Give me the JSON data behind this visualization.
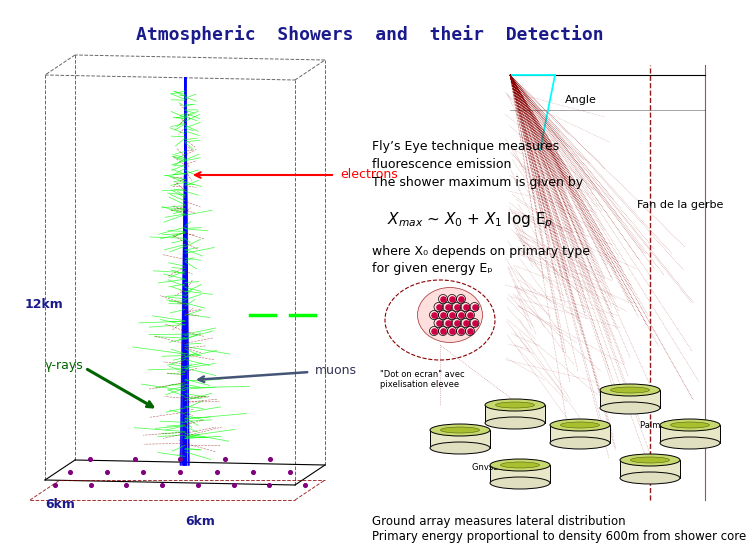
{
  "title": "Atmospheric  Showers  and  their  Detection",
  "title_color": "#1a1a8c",
  "title_fontsize": 13,
  "bg_color": "#ffffff",
  "text_fly1": "Fly’s Eye technique measures",
  "text_fly2": "fluorescence emission",
  "text_fly3": "The shower maximum is given by",
  "text_where1": "where X₀ depends on primary type",
  "text_where2": "for given energy Eₚ",
  "text_ground1": "Ground array measures lateral distribution",
  "text_ground2": "Primary energy proportional to density 600m from shower core",
  "formula": "$\\mathit{X}_{max}$ ~ $\\mathit{X}_0$ + $\\mathit{X}_1$ log E$_p$",
  "label_electrons": "electrons",
  "label_12km": "12km",
  "label_gamma": "γ-rays",
  "label_muons": "muons",
  "label_6km_left": "6km",
  "label_6km_bottom": "6km",
  "label_angle": "Angle",
  "label_fan": "Fan de la gerbe"
}
